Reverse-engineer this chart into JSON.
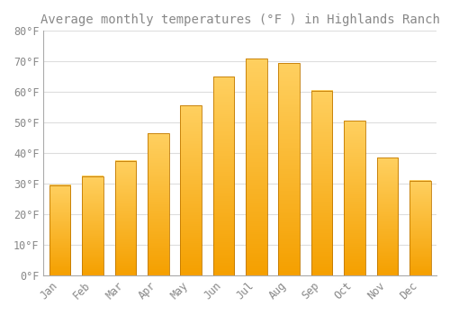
{
  "title": "Average monthly temperatures (°F ) in Highlands Ranch",
  "months": [
    "Jan",
    "Feb",
    "Mar",
    "Apr",
    "May",
    "Jun",
    "Jul",
    "Aug",
    "Sep",
    "Oct",
    "Nov",
    "Dec"
  ],
  "values": [
    29.5,
    32.5,
    37.5,
    46.5,
    55.5,
    65.0,
    71.0,
    69.5,
    60.5,
    50.5,
    38.5,
    31.0
  ],
  "bar_color_light": "#FFD060",
  "bar_color_dark": "#F5A000",
  "bar_edge_color": "#C07800",
  "background_color": "#FFFFFF",
  "grid_color": "#DDDDDD",
  "text_color": "#888888",
  "ylim": [
    0,
    80
  ],
  "ytick_step": 10,
  "title_fontsize": 10,
  "tick_fontsize": 8.5
}
